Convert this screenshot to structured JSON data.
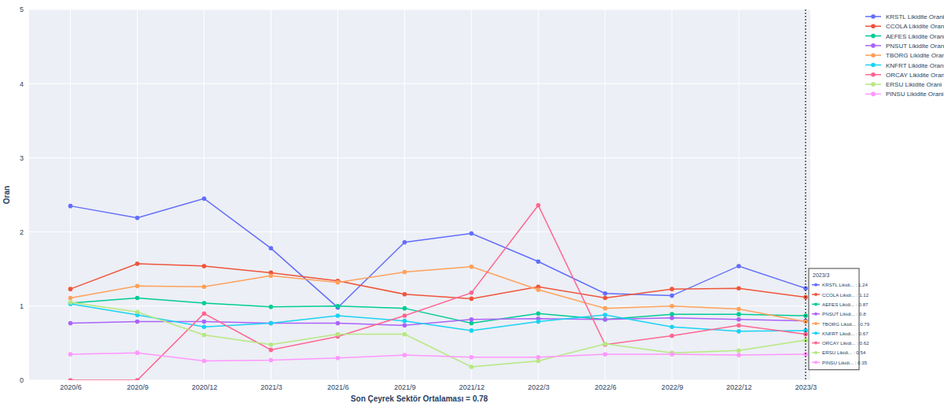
{
  "chart_data": {
    "type": "line",
    "x_label": "Son Çeyrek Sektör Ortalaması = 0.78",
    "y_label": "Oran",
    "categories": [
      "2020/6",
      "2020/9",
      "2020/12",
      "2021/3",
      "2021/6",
      "2021/9",
      "2021/12",
      "2022/3",
      "2022/6",
      "2022/9",
      "2022/12",
      "2023/3"
    ],
    "series": [
      {
        "name": "KRSTL Likidite Orani",
        "color": "#636efa",
        "values": [
          2.35,
          2.19,
          2.45,
          1.78,
          0.98,
          1.86,
          1.98,
          1.6,
          1.17,
          1.14,
          1.54,
          1.24
        ]
      },
      {
        "name": "CCOLA Likidite Orani",
        "color": "#EF553B",
        "values": [
          1.23,
          1.57,
          1.54,
          1.45,
          1.34,
          1.16,
          1.1,
          1.26,
          1.11,
          1.23,
          1.24,
          1.12
        ]
      },
      {
        "name": "AEFES Likidite Orani",
        "color": "#00cc96",
        "values": [
          1.04,
          1.11,
          1.04,
          0.99,
          1.0,
          0.97,
          0.77,
          0.9,
          0.82,
          0.89,
          0.89,
          0.87
        ]
      },
      {
        "name": "PNSUT Likidite Orani",
        "color": "#ab63fa",
        "values": [
          0.77,
          0.79,
          0.79,
          0.77,
          0.77,
          0.74,
          0.82,
          0.83,
          0.82,
          0.84,
          0.82,
          0.8
        ]
      },
      {
        "name": "TBORG Likidite Orani",
        "color": "#FFA15A",
        "values": [
          1.11,
          1.27,
          1.26,
          1.41,
          1.32,
          1.46,
          1.53,
          1.22,
          0.97,
          1.0,
          0.96,
          0.79
        ]
      },
      {
        "name": "KNFRT Likidite Orani",
        "color": "#19d3f3",
        "values": [
          1.03,
          0.88,
          0.72,
          0.77,
          0.87,
          0.8,
          0.67,
          0.79,
          0.88,
          0.72,
          0.66,
          0.67
        ]
      },
      {
        "name": "ORCAY Likidite Orani",
        "color": "#FF6692",
        "values": [
          0.0,
          0.0,
          0.9,
          0.41,
          0.59,
          0.87,
          1.18,
          2.36,
          0.48,
          0.6,
          0.74,
          0.62
        ]
      },
      {
        "name": "ERSU Likidite Orani",
        "color": "#B6E880",
        "values": [
          1.05,
          0.92,
          0.61,
          0.48,
          0.62,
          0.62,
          0.18,
          0.26,
          0.49,
          0.37,
          0.4,
          0.54
        ]
      },
      {
        "name": "PINSU Likidite Orani",
        "color": "#FF97FF",
        "values": [
          0.35,
          0.37,
          0.26,
          0.27,
          0.3,
          0.34,
          0.31,
          0.31,
          0.35,
          0.35,
          0.34,
          0.35
        ]
      }
    ],
    "ylim": [
      0,
      5
    ],
    "yticks": [
      0,
      1,
      2,
      3,
      4,
      5
    ],
    "grid": true,
    "legend": "top-right",
    "marker": "circle",
    "annotations": [
      {
        "text": "2023/3",
        "lines": [
          "KRSTL Likidi... : 1.24",
          "CCOLA Likidi... : 1.12",
          "AEFES Likidi... : 0.87",
          "PNSUT Likidi... : 0.8",
          "TBORG Likidi... : 0.79",
          "KNFRT Likidi... : 0.67",
          "ORCAY Likidi... : 0.62",
          "ERSU Likidi... : 0.54",
          "PINSU Likidi... : 0.35"
        ]
      }
    ]
  }
}
